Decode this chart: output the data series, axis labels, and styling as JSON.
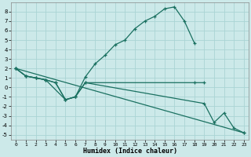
{
  "xlabel": "Humidex (Indice chaleur)",
  "bg_color": "#cce9e9",
  "grid_color": "#aad4d4",
  "line_color": "#1a7060",
  "xlim": [
    -0.5,
    23.5
  ],
  "ylim": [
    -5.5,
    9.0
  ],
  "xticks": [
    0,
    1,
    2,
    3,
    4,
    5,
    6,
    7,
    8,
    9,
    10,
    11,
    12,
    13,
    14,
    15,
    16,
    17,
    18,
    19,
    20,
    21,
    22,
    23
  ],
  "yticks": [
    -5,
    -4,
    -3,
    -2,
    -1,
    0,
    1,
    2,
    3,
    4,
    5,
    6,
    7,
    8
  ],
  "curves": [
    {
      "x": [
        0,
        1,
        2,
        3,
        5,
        6,
        7,
        8,
        9,
        10,
        11,
        12,
        13,
        14,
        15,
        16,
        17,
        18
      ],
      "y": [
        2.0,
        1.2,
        1.0,
        0.8,
        -1.3,
        -1.0,
        1.1,
        2.5,
        3.4,
        4.5,
        5.0,
        6.2,
        7.0,
        7.5,
        8.3,
        8.5,
        7.0,
        4.7
      ]
    },
    {
      "x": [
        0,
        1,
        2,
        3,
        4,
        5,
        6,
        7,
        18,
        19
      ],
      "y": [
        2.0,
        1.2,
        1.0,
        0.8,
        0.5,
        -1.3,
        -1.0,
        0.5,
        0.5,
        0.5
      ]
    },
    {
      "x": [
        0,
        1,
        2,
        3,
        4,
        5,
        6,
        7,
        19,
        20,
        21,
        22,
        23
      ],
      "y": [
        2.0,
        1.2,
        1.0,
        0.8,
        0.5,
        -1.3,
        -1.0,
        0.5,
        -1.7,
        -3.7,
        -2.7,
        -4.3,
        -4.8
      ]
    },
    {
      "x": [
        0,
        23
      ],
      "y": [
        2.0,
        -4.8
      ]
    }
  ]
}
